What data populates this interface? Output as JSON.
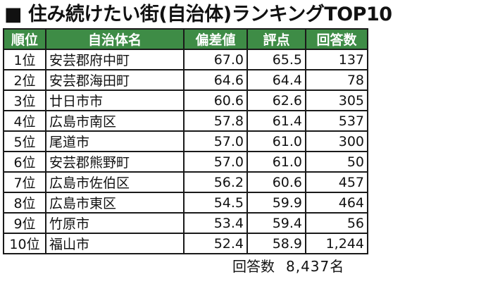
{
  "title": "■ 住み続けたい街(自治体)ランキングTOP10",
  "table": {
    "headers": [
      "順位",
      "自治体名",
      "偏差値",
      "評点",
      "回答数"
    ],
    "rows": [
      {
        "rank": "1位",
        "name": "安芸郡府中町",
        "deviation": "67.0",
        "score": "65.5",
        "responses": "137"
      },
      {
        "rank": "2位",
        "name": "安芸郡海田町",
        "deviation": "64.6",
        "score": "64.4",
        "responses": "78"
      },
      {
        "rank": "3位",
        "name": "廿日市市",
        "deviation": "60.6",
        "score": "62.6",
        "responses": "305"
      },
      {
        "rank": "4位",
        "name": "広島市南区",
        "deviation": "57.8",
        "score": "61.4",
        "responses": "537"
      },
      {
        "rank": "5位",
        "name": "尾道市",
        "deviation": "57.0",
        "score": "61.0",
        "responses": "300"
      },
      {
        "rank": "6位",
        "name": "安芸郡熊野町",
        "deviation": "57.0",
        "score": "61.0",
        "responses": "50"
      },
      {
        "rank": "7位",
        "name": "広島市佐伯区",
        "deviation": "56.2",
        "score": "60.6",
        "responses": "457"
      },
      {
        "rank": "8位",
        "name": "広島市東区",
        "deviation": "54.5",
        "score": "59.9",
        "responses": "464"
      },
      {
        "rank": "9位",
        "name": "竹原市",
        "deviation": "53.4",
        "score": "59.4",
        "responses": "56"
      },
      {
        "rank": "10位",
        "name": "福山市",
        "deviation": "52.4",
        "score": "58.9",
        "responses": "1,244"
      }
    ]
  },
  "footer": {
    "total_label": "回答数",
    "total_value": "8,437名"
  }
}
